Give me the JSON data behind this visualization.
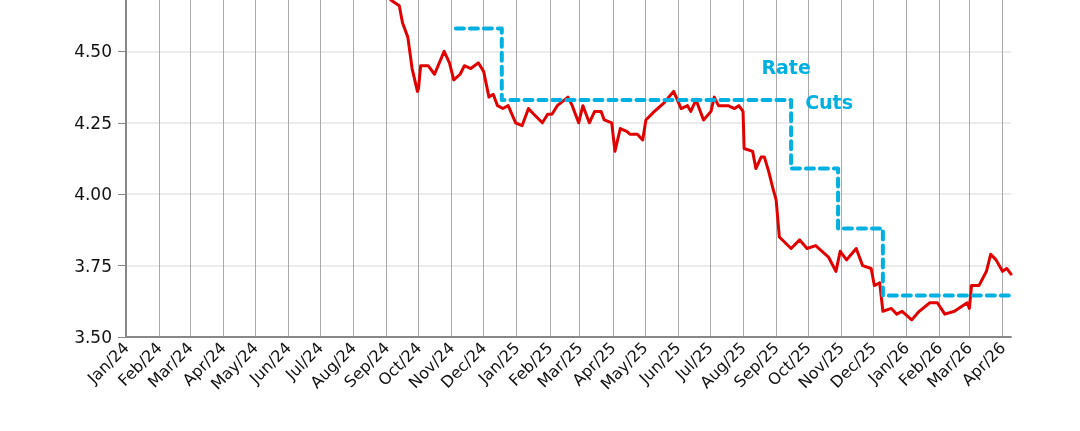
{
  "chart_data": {
    "type": "line",
    "xlim": [
      "2024-01-01",
      "2026-04-09"
    ],
    "xticks": [
      {
        "value": "2024-01-01",
        "label": "Jan/24"
      },
      {
        "value": "2024-02-01",
        "label": "Feb/24"
      },
      {
        "value": "2024-03-01",
        "label": "Mar/24"
      },
      {
        "value": "2024-04-01",
        "label": "Apr/24"
      },
      {
        "value": "2024-05-01",
        "label": "May/24"
      },
      {
        "value": "2024-06-01",
        "label": "Jun/24"
      },
      {
        "value": "2024-07-01",
        "label": "Jul/24"
      },
      {
        "value": "2024-08-01",
        "label": "Aug/24"
      },
      {
        "value": "2024-09-01",
        "label": "Sep/24"
      },
      {
        "value": "2024-10-01",
        "label": "Oct/24"
      },
      {
        "value": "2024-11-01",
        "label": "Nov/24"
      },
      {
        "value": "2024-12-01",
        "label": "Dec/24"
      },
      {
        "value": "2025-01-01",
        "label": "Jan/25"
      },
      {
        "value": "2025-02-01",
        "label": "Feb/25"
      },
      {
        "value": "2025-03-01",
        "label": "Mar/25"
      },
      {
        "value": "2025-04-01",
        "label": "Apr/25"
      },
      {
        "value": "2025-05-01",
        "label": "May/25"
      },
      {
        "value": "2025-06-01",
        "label": "Jun/25"
      },
      {
        "value": "2025-07-01",
        "label": "Jul/25"
      },
      {
        "value": "2025-08-01",
        "label": "Aug/25"
      },
      {
        "value": "2025-09-01",
        "label": "Sep/25"
      },
      {
        "value": "2025-10-01",
        "label": "Oct/25"
      },
      {
        "value": "2025-11-01",
        "label": "Nov/25"
      },
      {
        "value": "2025-12-01",
        "label": "Dec/25"
      },
      {
        "value": "2026-01-01",
        "label": "Jan/26"
      },
      {
        "value": "2026-02-01",
        "label": "Feb/26"
      },
      {
        "value": "2026-03-01",
        "label": "Mar/26"
      },
      {
        "value": "2026-04-01",
        "label": "Apr/26"
      }
    ],
    "ylim": [
      3.5,
      4.68
    ],
    "yticks": [
      {
        "value": 3.5,
        "label": "3.50"
      },
      {
        "value": 3.75,
        "label": "3.75"
      },
      {
        "value": 4.0,
        "label": "4.00"
      },
      {
        "value": 4.25,
        "label": "4.25"
      },
      {
        "value": 4.5,
        "label": "4.50"
      }
    ],
    "grid": true,
    "marker": "none",
    "series": [
      {
        "color": "#e00000",
        "line_style": "solid",
        "x": [
          "2024-09-05",
          "2024-09-13",
          "2024-09-16",
          "2024-09-21",
          "2024-09-25",
          "2024-09-30",
          "2024-10-01",
          "2024-10-03",
          "2024-10-10",
          "2024-10-16",
          "2024-10-25",
          "2024-10-30",
          "2024-11-03",
          "2024-11-09",
          "2024-11-13",
          "2024-11-19",
          "2024-11-26",
          "2024-12-01",
          "2024-12-06",
          "2024-12-10",
          "2024-12-14",
          "2024-12-19",
          "2024-12-24",
          "2024-12-31",
          "2025-01-06",
          "2025-01-12",
          "2025-01-17",
          "2025-01-25",
          "2025-01-30",
          "2025-02-03",
          "2025-02-08",
          "2025-02-18",
          "2025-02-22",
          "2025-02-28",
          "2025-03-04",
          "2025-03-10",
          "2025-03-15",
          "2025-03-21",
          "2025-03-24",
          "2025-03-31",
          "2025-04-03",
          "2025-04-08",
          "2025-04-14",
          "2025-04-17",
          "2025-04-24",
          "2025-04-29",
          "2025-05-02",
          "2025-05-10",
          "2025-05-19",
          "2025-05-28",
          "2025-06-04",
          "2025-06-10",
          "2025-06-13",
          "2025-06-18",
          "2025-06-25",
          "2025-07-02",
          "2025-07-05",
          "2025-07-09",
          "2025-07-18",
          "2025-07-24",
          "2025-07-28",
          "2025-08-01",
          "2025-08-02",
          "2025-08-10",
          "2025-08-13",
          "2025-08-18",
          "2025-08-21",
          "2025-08-25",
          "2025-08-29",
          "2025-09-01",
          "2025-09-04",
          "2025-09-15",
          "2025-09-23",
          "2025-09-30",
          "2025-10-08",
          "2025-10-20",
          "2025-10-27",
          "2025-10-31",
          "2025-11-06",
          "2025-11-15",
          "2025-11-21",
          "2025-11-29",
          "2025-12-02",
          "2025-12-07",
          "2025-12-10",
          "2025-12-18",
          "2025-12-23",
          "2025-12-28",
          "2026-01-06",
          "2026-01-13",
          "2026-01-23",
          "2026-01-30",
          "2026-02-06",
          "2026-02-15",
          "2026-02-27",
          "2026-03-01",
          "2026-03-03",
          "2026-03-10",
          "2026-03-17",
          "2026-03-21",
          "2026-03-26",
          "2026-04-01",
          "2026-04-05",
          "2026-04-09"
        ],
        "values": [
          4.68,
          4.66,
          4.6,
          4.55,
          4.44,
          4.36,
          4.37,
          4.45,
          4.45,
          4.42,
          4.5,
          4.46,
          4.4,
          4.42,
          4.45,
          4.44,
          4.46,
          4.43,
          4.34,
          4.35,
          4.31,
          4.3,
          4.31,
          4.25,
          4.24,
          4.3,
          4.28,
          4.25,
          4.28,
          4.28,
          4.31,
          4.34,
          4.31,
          4.25,
          4.31,
          4.25,
          4.29,
          4.29,
          4.26,
          4.25,
          4.15,
          4.23,
          4.22,
          4.21,
          4.21,
          4.19,
          4.26,
          4.29,
          4.32,
          4.36,
          4.3,
          4.31,
          4.29,
          4.33,
          4.26,
          4.29,
          4.34,
          4.31,
          4.31,
          4.3,
          4.31,
          4.29,
          4.16,
          4.15,
          4.09,
          4.13,
          4.13,
          4.08,
          4.02,
          3.98,
          3.85,
          3.81,
          3.84,
          3.81,
          3.82,
          3.78,
          3.73,
          3.8,
          3.77,
          3.81,
          3.75,
          3.74,
          3.68,
          3.69,
          3.59,
          3.6,
          3.58,
          3.59,
          3.56,
          3.59,
          3.62,
          3.62,
          3.58,
          3.59,
          3.62,
          3.6,
          3.68,
          3.68,
          3.73,
          3.79,
          3.77,
          3.73,
          3.74,
          3.72
        ]
      },
      {
        "type": "step",
        "color": "#00b0e0",
        "line_style": "dashed",
        "x": [
          "2024-11-05",
          "2024-12-18",
          "2025-09-15",
          "2025-10-29",
          "2025-12-10",
          "2026-04-09"
        ],
        "values": [
          4.58,
          4.33,
          4.09,
          3.88,
          3.645,
          3.645
        ]
      }
    ],
    "annotations": [
      "Rate",
      "Cuts"
    ]
  }
}
